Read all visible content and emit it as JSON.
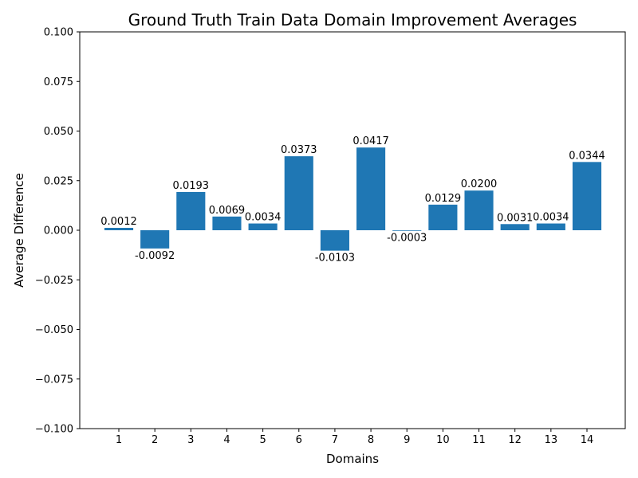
{
  "chart_data": {
    "type": "bar",
    "title": "Ground Truth Train Data Domain Improvement Averages",
    "xlabel": "Domains",
    "ylabel": "Average Difference",
    "categories": [
      "1",
      "2",
      "3",
      "4",
      "5",
      "6",
      "7",
      "8",
      "9",
      "10",
      "11",
      "12",
      "13",
      "14"
    ],
    "values": [
      0.0012,
      -0.0092,
      0.0193,
      0.0069,
      0.0034,
      0.0373,
      -0.0103,
      0.0417,
      -0.0003,
      0.0129,
      0.02,
      0.0031,
      0.0034,
      0.0344
    ],
    "value_labels": [
      "0.0012",
      "-0.0092",
      "0.0193",
      "0.0069",
      "0.0034",
      "0.0373",
      "-0.0103",
      "0.0417",
      "-0.0003",
      "0.0129",
      "0.0200",
      "0.0031",
      "0.0034",
      "0.0344"
    ],
    "ylim": [
      -0.1,
      0.1
    ],
    "yticks": [
      -0.1,
      -0.075,
      -0.05,
      -0.025,
      0.0,
      0.025,
      0.05,
      0.075,
      0.1
    ],
    "ytick_labels": [
      "−0.100",
      "−0.075",
      "−0.050",
      "−0.025",
      "0.000",
      "0.025",
      "0.050",
      "0.075",
      "0.100"
    ],
    "grid": false,
    "bar_color": "#1f77b4"
  }
}
